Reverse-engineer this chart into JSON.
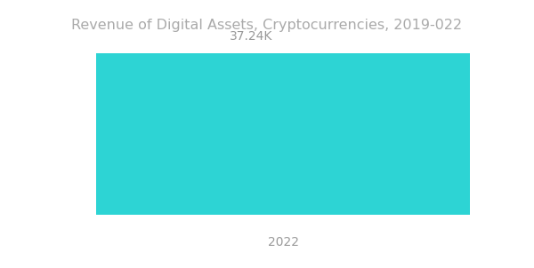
{
  "title": "Revenue of Digital Assets, Cryptocurrencies, 2019-022",
  "bar_category": "2022",
  "bar_value": 37.24,
  "bar_label": "37.24K",
  "bar_color": "#2dd4d4",
  "background_color": "#ffffff",
  "title_color": "#aaaaaa",
  "label_color": "#999999",
  "title_fontsize": 11.5,
  "label_fontsize": 10,
  "xlabel_fontsize": 10
}
